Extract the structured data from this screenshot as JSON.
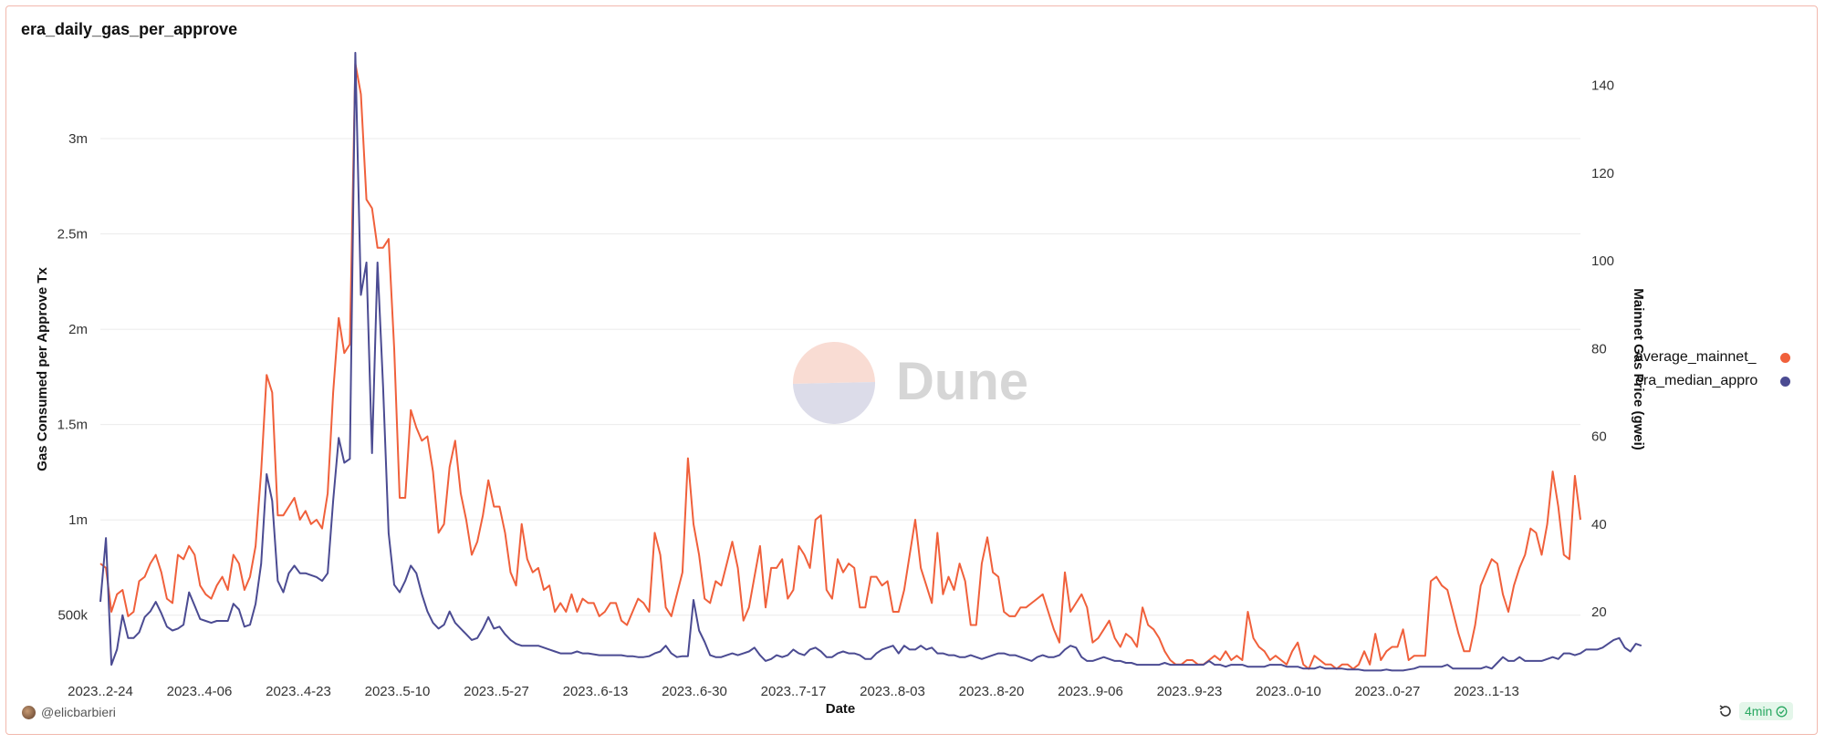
{
  "title": "era_daily_gas_per_approve",
  "user": "@elicbarbieri",
  "freshness": "4min",
  "watermark": "Dune",
  "colors": {
    "orange": "#f0603b",
    "blue": "#4b4b92",
    "grid": "#ebebeb",
    "axis_text": "#333333"
  },
  "chart_data": {
    "type": "line",
    "xlabel": "Date",
    "ylabel_left": "Gas Consumed per Approve Tx",
    "ylabel_right": "Mainnet Gas Price (gwei)",
    "x_ticks": [
      "2023..2-24",
      "2023..4-06",
      "2023..4-23",
      "2023..5-10",
      "2023..5-27",
      "2023..6-13",
      "2023..6-30",
      "2023..7-17",
      "2023..8-03",
      "2023..8-20",
      "2023..9-06",
      "2023..9-23",
      "2023..0-10",
      "2023..0-27",
      "2023..1-13"
    ],
    "left_ticks": [
      "500k",
      "1m",
      "1.5m",
      "2m",
      "2.5m",
      "3m"
    ],
    "left_tick_values": [
      500000,
      1000000,
      1500000,
      2000000,
      2500000,
      3000000
    ],
    "right_ticks": [
      "20",
      "40",
      "60",
      "80",
      "100",
      "120",
      "140"
    ],
    "right_tick_values": [
      20,
      40,
      60,
      80,
      100,
      120,
      140
    ],
    "left_range": [
      207000,
      3440000
    ],
    "right_range": [
      6.5,
      147
    ],
    "legend_position": "right",
    "grid": true,
    "series": [
      {
        "name": "average_mainnet_",
        "axis": "right",
        "color": "#f0603b",
        "values": [
          31,
          30,
          20,
          24,
          25,
          19,
          20,
          27,
          28,
          31,
          33,
          29,
          23,
          22,
          33,
          32,
          35,
          33,
          26,
          24,
          23,
          26,
          28,
          25,
          33,
          31,
          25,
          28,
          35,
          52,
          74,
          70,
          42,
          42,
          44,
          46,
          41,
          43,
          40,
          41,
          39,
          47,
          70,
          87,
          79,
          81,
          145,
          138,
          114,
          112,
          103,
          103,
          105,
          80,
          46,
          46,
          66,
          62,
          59,
          60,
          52,
          38,
          40,
          53,
          59,
          47,
          41,
          33,
          36,
          42,
          50,
          44,
          44,
          38,
          29,
          26,
          40,
          32,
          29,
          30,
          25,
          26,
          20,
          22,
          20,
          24,
          20,
          23,
          22,
          22,
          19,
          20,
          22,
          22,
          18,
          17,
          20,
          23,
          22,
          20,
          38,
          33,
          21,
          19,
          24,
          29,
          55,
          40,
          33,
          23,
          22,
          27,
          26,
          31,
          36,
          30,
          18,
          21,
          28,
          35,
          21,
          30,
          30,
          32,
          23,
          25,
          35,
          33,
          30,
          41,
          42,
          25,
          23,
          32,
          29,
          31,
          30,
          21,
          21,
          28,
          28,
          26,
          27,
          20,
          20,
          25,
          33,
          41,
          30,
          26,
          22,
          38,
          24,
          28,
          25,
          31,
          27,
          17,
          17,
          31,
          37,
          29,
          28,
          20,
          19,
          19,
          21,
          21,
          22,
          23,
          24,
          20,
          16,
          13,
          29,
          20,
          22,
          24,
          21,
          13,
          14,
          16,
          18,
          14,
          12,
          15,
          14,
          12,
          21,
          17,
          16,
          14,
          11,
          9,
          8,
          8,
          9,
          9,
          8,
          8,
          9,
          10,
          9,
          11,
          9,
          10,
          9,
          20,
          14,
          12,
          11,
          9,
          10,
          9,
          8,
          11,
          13,
          8,
          7,
          10,
          9,
          8,
          8,
          7,
          8,
          8,
          7,
          8,
          11,
          8,
          15,
          9,
          11,
          12,
          12,
          16,
          9,
          10,
          10,
          10,
          27,
          28,
          26,
          25,
          20,
          15,
          11,
          11,
          17,
          26,
          29,
          32,
          31,
          24,
          20,
          26,
          30,
          33,
          39,
          38,
          33,
          40,
          52,
          44,
          33,
          32,
          51,
          41
        ]
      },
      {
        "name": "era_median_appro",
        "axis": "left",
        "color": "#4b4b92",
        "values": [
          570000,
          905000,
          240000,
          320000,
          500000,
          380000,
          380000,
          410000,
          490000,
          520000,
          570000,
          510000,
          440000,
          420000,
          430000,
          450000,
          620000,
          550000,
          480000,
          470000,
          460000,
          470000,
          470000,
          470000,
          560000,
          530000,
          440000,
          450000,
          560000,
          770000,
          1240000,
          1100000,
          680000,
          620000,
          720000,
          760000,
          720000,
          720000,
          710000,
          700000,
          680000,
          720000,
          1100000,
          1430000,
          1300000,
          1320000,
          3450000,
          2180000,
          2350000,
          1350000,
          2350000,
          1700000,
          930000,
          660000,
          620000,
          680000,
          760000,
          720000,
          610000,
          520000,
          460000,
          430000,
          450000,
          520000,
          460000,
          430000,
          400000,
          370000,
          380000,
          430000,
          490000,
          430000,
          440000,
          400000,
          370000,
          350000,
          340000,
          340000,
          340000,
          340000,
          330000,
          320000,
          310000,
          300000,
          300000,
          300000,
          310000,
          300000,
          300000,
          295000,
          290000,
          290000,
          290000,
          290000,
          290000,
          285000,
          285000,
          280000,
          280000,
          285000,
          300000,
          310000,
          340000,
          300000,
          280000,
          285000,
          285000,
          580000,
          420000,
          360000,
          290000,
          280000,
          280000,
          290000,
          300000,
          290000,
          300000,
          310000,
          330000,
          290000,
          260000,
          270000,
          290000,
          280000,
          290000,
          320000,
          300000,
          290000,
          320000,
          330000,
          310000,
          280000,
          280000,
          300000,
          310000,
          300000,
          300000,
          290000,
          270000,
          270000,
          300000,
          320000,
          330000,
          340000,
          300000,
          340000,
          320000,
          320000,
          340000,
          320000,
          330000,
          300000,
          300000,
          290000,
          290000,
          280000,
          280000,
          290000,
          280000,
          270000,
          280000,
          290000,
          300000,
          300000,
          290000,
          290000,
          280000,
          270000,
          260000,
          280000,
          290000,
          280000,
          280000,
          290000,
          320000,
          340000,
          330000,
          280000,
          260000,
          260000,
          270000,
          280000,
          270000,
          260000,
          260000,
          250000,
          250000,
          240000,
          240000,
          240000,
          240000,
          240000,
          250000,
          240000,
          240000,
          240000,
          240000,
          240000,
          240000,
          240000,
          260000,
          240000,
          240000,
          230000,
          240000,
          240000,
          240000,
          230000,
          230000,
          230000,
          230000,
          240000,
          240000,
          240000,
          230000,
          230000,
          230000,
          220000,
          220000,
          220000,
          230000,
          220000,
          220000,
          220000,
          220000,
          215000,
          215000,
          215000,
          210000,
          210000,
          210000,
          210000,
          215000,
          210000,
          210000,
          210000,
          215000,
          220000,
          230000,
          230000,
          230000,
          230000,
          230000,
          240000,
          220000,
          220000,
          220000,
          220000,
          220000,
          220000,
          230000,
          220000,
          250000,
          280000,
          260000,
          260000,
          280000,
          260000,
          260000,
          260000,
          260000,
          270000,
          280000,
          270000,
          300000,
          300000,
          290000,
          300000,
          320000,
          320000,
          320000,
          330000,
          350000,
          370000,
          380000,
          330000,
          310000,
          350000,
          340000
        ]
      }
    ]
  }
}
